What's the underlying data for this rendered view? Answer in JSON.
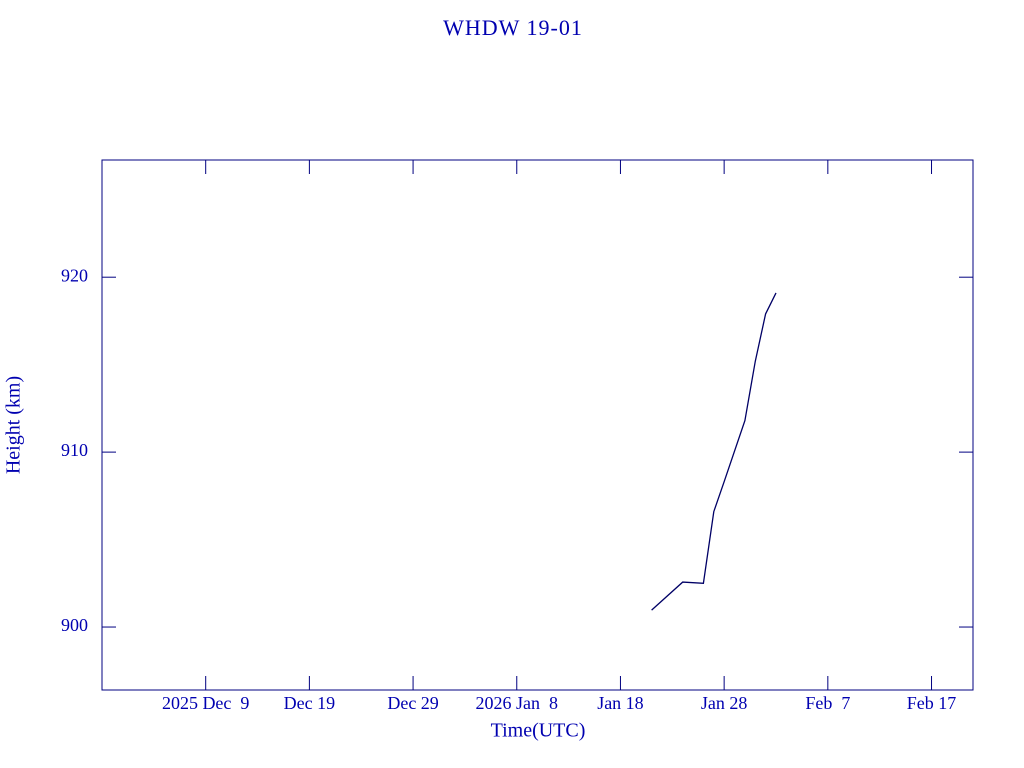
{
  "chart_data": {
    "type": "line",
    "title": "WHDW 19-01",
    "x_label": "Time(UTC)",
    "y_label": "Height (km)",
    "x": [
      "2026-01-21",
      "2026-01-24",
      "2026-01-26",
      "2026-01-27",
      "2026-01-28",
      "2026-01-30",
      "2026-01-31",
      "2026-02-01",
      "2026-02-02"
    ],
    "series": [
      {
        "name": "WHDW 19-01",
        "color": "#000066",
        "values": [
          900.97,
          902.57,
          902.5,
          906.6,
          908.3,
          911.8,
          915.2,
          917.9,
          919.1
        ]
      }
    ],
    "xlim": [
      "2025-11-29",
      "2026-02-21"
    ],
    "xticks": [
      {
        "value": "2025-12-09",
        "label": "2025 Dec  9"
      },
      {
        "value": "2025-12-19",
        "label": "Dec 19"
      },
      {
        "value": "2025-12-29",
        "label": "Dec 29"
      },
      {
        "value": "2026-01-08",
        "label": "2026 Jan  8"
      },
      {
        "value": "2026-01-18",
        "label": "Jan 18"
      },
      {
        "value": "2026-01-28",
        "label": "Jan 28"
      },
      {
        "value": "2026-02-07",
        "label": "Feb  7"
      },
      {
        "value": "2026-02-17",
        "label": "Feb 17"
      }
    ],
    "ylim": [
      896.4,
      926.7
    ],
    "yticks": [
      900,
      910,
      920
    ],
    "axis_color": "#000080",
    "text_color": "#0000b0"
  }
}
